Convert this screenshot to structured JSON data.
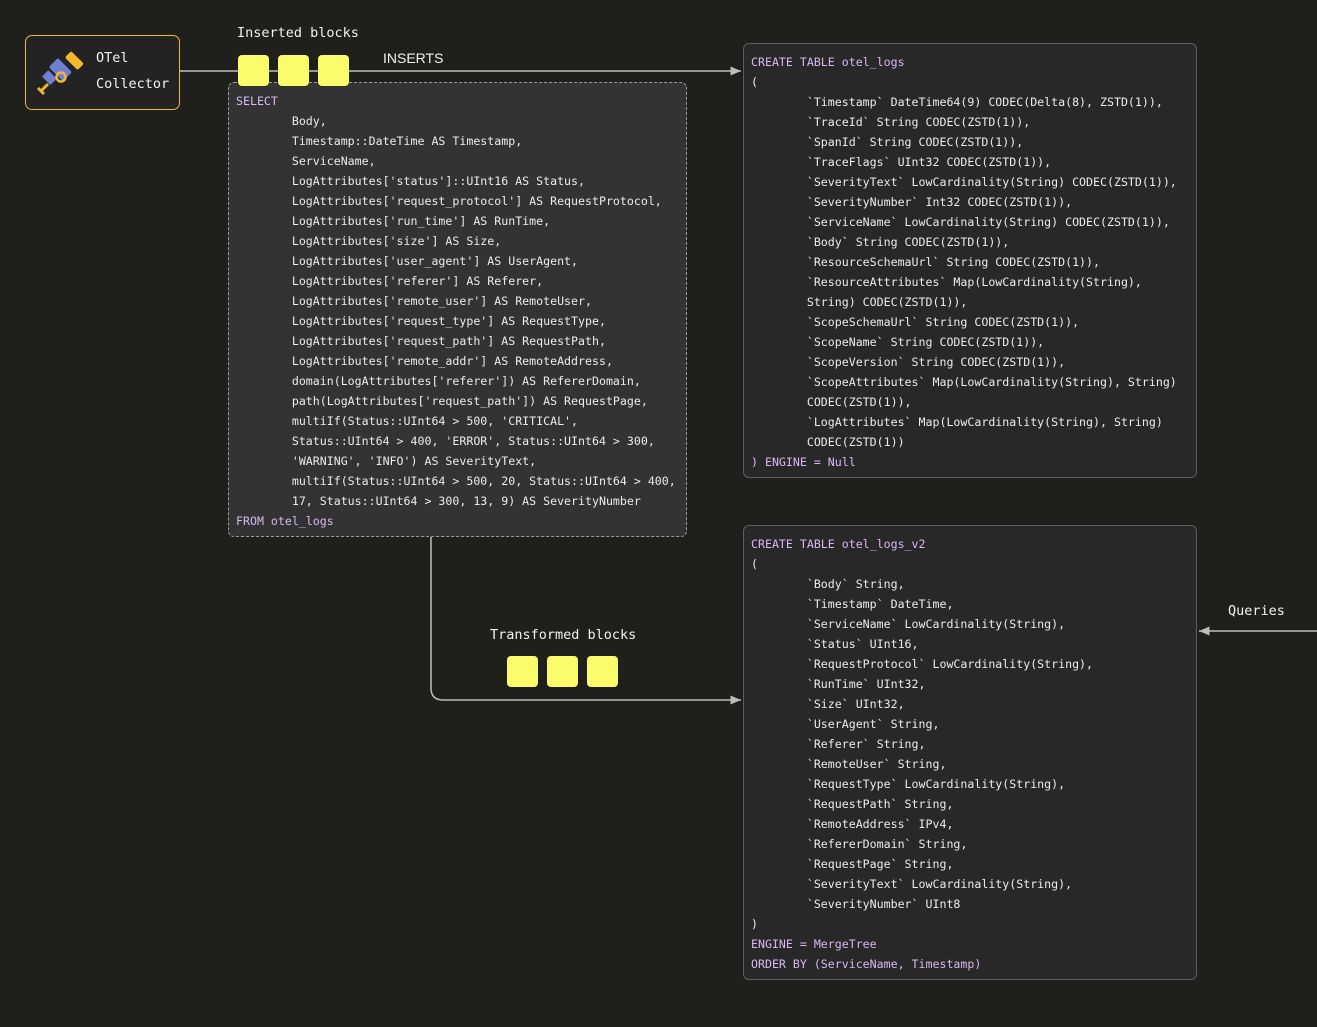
{
  "collector": {
    "line1": "OTel",
    "line2": "Collector",
    "icon": "telescope-icon"
  },
  "labels": {
    "inserted_blocks": "Inserted blocks",
    "inserts": "INSERTS",
    "transformed_blocks": "Transformed blocks",
    "queries": "Queries"
  },
  "colors": {
    "block": "#fafc6a",
    "keyword": "#d9b8f2",
    "collector_border": "#f3b72e",
    "icon_blue": "#6f7fd6"
  },
  "select_query": [
    {
      "t": "SELECT",
      "kw": true
    },
    {
      "t": "        Body,"
    },
    {
      "t": "        Timestamp::DateTime AS Timestamp,"
    },
    {
      "t": "        ServiceName,"
    },
    {
      "t": "        LogAttributes['status']::UInt16 AS Status,"
    },
    {
      "t": "        LogAttributes['request_protocol'] AS RequestProtocol,"
    },
    {
      "t": "        LogAttributes['run_time'] AS RunTime,"
    },
    {
      "t": "        LogAttributes['size'] AS Size,"
    },
    {
      "t": "        LogAttributes['user_agent'] AS UserAgent,"
    },
    {
      "t": "        LogAttributes['referer'] AS Referer,"
    },
    {
      "t": "        LogAttributes['remote_user'] AS RemoteUser,"
    },
    {
      "t": "        LogAttributes['request_type'] AS RequestType,"
    },
    {
      "t": "        LogAttributes['request_path'] AS RequestPath,"
    },
    {
      "t": "        LogAttributes['remote_addr'] AS RemoteAddress,"
    },
    {
      "t": "        domain(LogAttributes['referer']) AS RefererDomain,"
    },
    {
      "t": "        path(LogAttributes['request_path']) AS RequestPage,"
    },
    {
      "t": "        multiIf(Status::UInt64 > 500, 'CRITICAL',"
    },
    {
      "t": "        Status::UInt64 > 400, 'ERROR', Status::UInt64 > 300,"
    },
    {
      "t": "        'WARNING', 'INFO') AS SeverityText,"
    },
    {
      "t": "        multiIf(Status::UInt64 > 500, 20, Status::UInt64 > 400,"
    },
    {
      "t": "        17, Status::UInt64 > 300, 13, 9) AS SeverityNumber"
    },
    {
      "t": "FROM otel_logs",
      "kw": true
    }
  ],
  "table_otel_logs": [
    {
      "t": "CREATE TABLE otel_logs",
      "kw": true
    },
    {
      "t": "("
    },
    {
      "t": "        `Timestamp` DateTime64(9) CODEC(Delta(8), ZSTD(1)),"
    },
    {
      "t": "        `TraceId` String CODEC(ZSTD(1)),"
    },
    {
      "t": "        `SpanId` String CODEC(ZSTD(1)),"
    },
    {
      "t": "        `TraceFlags` UInt32 CODEC(ZSTD(1)),"
    },
    {
      "t": "        `SeverityText` LowCardinality(String) CODEC(ZSTD(1)),"
    },
    {
      "t": "        `SeverityNumber` Int32 CODEC(ZSTD(1)),"
    },
    {
      "t": "        `ServiceName` LowCardinality(String) CODEC(ZSTD(1)),"
    },
    {
      "t": "        `Body` String CODEC(ZSTD(1)),"
    },
    {
      "t": "        `ResourceSchemaUrl` String CODEC(ZSTD(1)),"
    },
    {
      "t": "        `ResourceAttributes` Map(LowCardinality(String),"
    },
    {
      "t": "        String) CODEC(ZSTD(1)),"
    },
    {
      "t": "        `ScopeSchemaUrl` String CODEC(ZSTD(1)),"
    },
    {
      "t": "        `ScopeName` String CODEC(ZSTD(1)),"
    },
    {
      "t": "        `ScopeVersion` String CODEC(ZSTD(1)),"
    },
    {
      "t": "        `ScopeAttributes` Map(LowCardinality(String), String)"
    },
    {
      "t": "        CODEC(ZSTD(1)),"
    },
    {
      "t": "        `LogAttributes` Map(LowCardinality(String), String)"
    },
    {
      "t": "        CODEC(ZSTD(1))"
    },
    {
      "t": ") ENGINE = Null",
      "kw": true
    }
  ],
  "table_otel_logs_v2": [
    {
      "t": "CREATE TABLE otel_logs_v2",
      "kw": true
    },
    {
      "t": "("
    },
    {
      "t": "        `Body` String,"
    },
    {
      "t": "        `Timestamp` DateTime,"
    },
    {
      "t": "        `ServiceName` LowCardinality(String),"
    },
    {
      "t": "        `Status` UInt16,"
    },
    {
      "t": "        `RequestProtocol` LowCardinality(String),"
    },
    {
      "t": "        `RunTime` UInt32,"
    },
    {
      "t": "        `Size` UInt32,"
    },
    {
      "t": "        `UserAgent` String,"
    },
    {
      "t": "        `Referer` String,"
    },
    {
      "t": "        `RemoteUser` String,"
    },
    {
      "t": "        `RequestType` LowCardinality(String),"
    },
    {
      "t": "        `RequestPath` String,"
    },
    {
      "t": "        `RemoteAddress` IPv4,"
    },
    {
      "t": "        `RefererDomain` String,"
    },
    {
      "t": "        `RequestPage` String,"
    },
    {
      "t": "        `SeverityText` LowCardinality(String),"
    },
    {
      "t": "        `SeverityNumber` UInt8"
    },
    {
      "t": ")"
    },
    {
      "t": "ENGINE = MergeTree",
      "kw": true
    },
    {
      "t": "ORDER BY (ServiceName, Timestamp)",
      "kw": true
    }
  ]
}
